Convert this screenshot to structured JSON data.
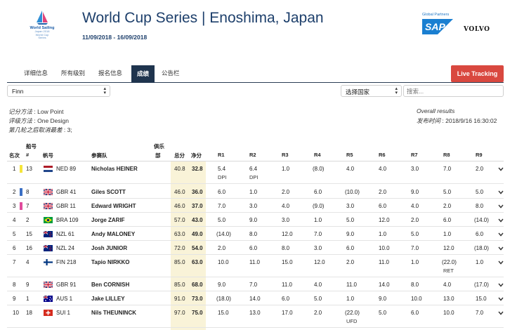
{
  "header": {
    "logo_line1": "World Sailing",
    "logo_line2": "Japan 2018",
    "logo_line3": "World Cup",
    "logo_line4": "Series",
    "title": "World Cup Series | Enoshima, Japan",
    "dates": "11/09/2018 - 16/09/2018",
    "partners_label": "Global Partners",
    "sap": "SAP",
    "volvo": "VOLVO"
  },
  "tabs": [
    "详细信息",
    "所有级别",
    "报名信息",
    "成绩",
    "公告栏"
  ],
  "live_tracking": "Live Tracking",
  "filters": {
    "class_value": "Finn",
    "country_value": "选择国家",
    "search_placeholder": "搜索..."
  },
  "info": {
    "scoring_label": "记分方法",
    "scoring_value": "Low Point",
    "rating_label": "评级方法",
    "rating_value": "One Design",
    "discard_label": "第几轮之后取消最差",
    "discard_value": "3;",
    "overall_label": "Overall results",
    "published_label": "发布时间",
    "published_value": "2018/9/16 16:30:02"
  },
  "columns": {
    "rank": "名次",
    "sail_top": "船号",
    "sail_hash": "#",
    "sail": "帆号",
    "team": "参赛队",
    "club_top": "俱乐",
    "club_bottom": "部",
    "total": "总分",
    "net": "净分",
    "races": [
      "R1",
      "R2",
      "R3",
      "R4",
      "R5",
      "R6",
      "R7",
      "R8",
      "R9"
    ]
  },
  "rows": [
    {
      "rank": "1",
      "bow": "13",
      "bar": "#f5e53a",
      "flag": "NED",
      "sail": "NED 89",
      "name": "Nicholas HEINER",
      "total": "40.8",
      "net": "32.8",
      "r": [
        "5.4",
        "6.4",
        "1.0",
        "(8.0)",
        "4.0",
        "4.0",
        "3.0",
        "7.0",
        "2.0"
      ],
      "codes": [
        "DPI",
        "DPI",
        "",
        "",
        "",
        "",
        "",
        "",
        ""
      ]
    },
    {
      "rank": "2",
      "bow": "8",
      "bar": "#3a6fc4",
      "flag": "GBR",
      "sail": "GBR 41",
      "name": "Giles SCOTT",
      "total": "46.0",
      "net": "36.0",
      "r": [
        "6.0",
        "1.0",
        "2.0",
        "6.0",
        "(10.0)",
        "2.0",
        "9.0",
        "5.0",
        "5.0"
      ],
      "codes": [
        "",
        "",
        "",
        "",
        "",
        "",
        "",
        "",
        ""
      ]
    },
    {
      "rank": "3",
      "bow": "7",
      "bar": "#e04a9c",
      "flag": "GBR",
      "sail": "GBR 11",
      "name": "Edward WRIGHT",
      "total": "46.0",
      "net": "37.0",
      "r": [
        "7.0",
        "3.0",
        "4.0",
        "(9.0)",
        "3.0",
        "6.0",
        "4.0",
        "2.0",
        "8.0"
      ],
      "codes": [
        "",
        "",
        "",
        "",
        "",
        "",
        "",
        "",
        ""
      ]
    },
    {
      "rank": "4",
      "bow": "2",
      "bar": "",
      "flag": "BRA",
      "sail": "BRA 109",
      "name": "Jorge ZARIF",
      "total": "57.0",
      "net": "43.0",
      "r": [
        "5.0",
        "9.0",
        "3.0",
        "1.0",
        "5.0",
        "12.0",
        "2.0",
        "6.0",
        "(14.0)"
      ],
      "codes": [
        "",
        "",
        "",
        "",
        "",
        "",
        "",
        "",
        ""
      ]
    },
    {
      "rank": "5",
      "bow": "15",
      "bar": "",
      "flag": "NZL",
      "sail": "NZL 61",
      "name": "Andy MALONEY",
      "total": "63.0",
      "net": "49.0",
      "r": [
        "(14.0)",
        "8.0",
        "12.0",
        "7.0",
        "9.0",
        "1.0",
        "5.0",
        "1.0",
        "6.0"
      ],
      "codes": [
        "",
        "",
        "",
        "",
        "",
        "",
        "",
        "",
        ""
      ]
    },
    {
      "rank": "6",
      "bow": "16",
      "bar": "",
      "flag": "NZL",
      "sail": "NZL 24",
      "name": "Josh JUNIOR",
      "total": "72.0",
      "net": "54.0",
      "r": [
        "2.0",
        "6.0",
        "8.0",
        "3.0",
        "6.0",
        "10.0",
        "7.0",
        "12.0",
        "(18.0)"
      ],
      "codes": [
        "",
        "",
        "",
        "",
        "",
        "",
        "",
        "",
        ""
      ]
    },
    {
      "rank": "7",
      "bow": "4",
      "bar": "",
      "flag": "FIN",
      "sail": "FIN 218",
      "name": "Tapio NIRKKO",
      "total": "85.0",
      "net": "63.0",
      "r": [
        "10.0",
        "11.0",
        "15.0",
        "12.0",
        "2.0",
        "11.0",
        "1.0",
        "(22.0)",
        "1.0"
      ],
      "codes": [
        "",
        "",
        "",
        "",
        "",
        "",
        "",
        "RET",
        ""
      ]
    },
    {
      "rank": "8",
      "bow": "9",
      "bar": "",
      "flag": "GBR",
      "sail": "GBR 91",
      "name": "Ben CORNISH",
      "total": "85.0",
      "net": "68.0",
      "r": [
        "9.0",
        "7.0",
        "11.0",
        "4.0",
        "11.0",
        "14.0",
        "8.0",
        "4.0",
        "(17.0)"
      ],
      "codes": [
        "",
        "",
        "",
        "",
        "",
        "",
        "",
        "",
        ""
      ]
    },
    {
      "rank": "9",
      "bow": "1",
      "bar": "",
      "flag": "AUS",
      "sail": "AUS 1",
      "name": "Jake LILLEY",
      "total": "91.0",
      "net": "73.0",
      "r": [
        "(18.0)",
        "14.0",
        "6.0",
        "5.0",
        "1.0",
        "9.0",
        "10.0",
        "13.0",
        "15.0"
      ],
      "codes": [
        "",
        "",
        "",
        "",
        "",
        "",
        "",
        "",
        ""
      ]
    },
    {
      "rank": "10",
      "bow": "18",
      "bar": "",
      "flag": "SUI",
      "sail": "SUI 1",
      "name": "Nils THEUNINCK",
      "total": "97.0",
      "net": "75.0",
      "r": [
        "15.0",
        "13.0",
        "17.0",
        "2.0",
        "(22.0)",
        "5.0",
        "6.0",
        "10.0",
        "7.0"
      ],
      "codes": [
        "",
        "",
        "",
        "",
        "UFD",
        "",
        "",
        "",
        ""
      ]
    }
  ]
}
